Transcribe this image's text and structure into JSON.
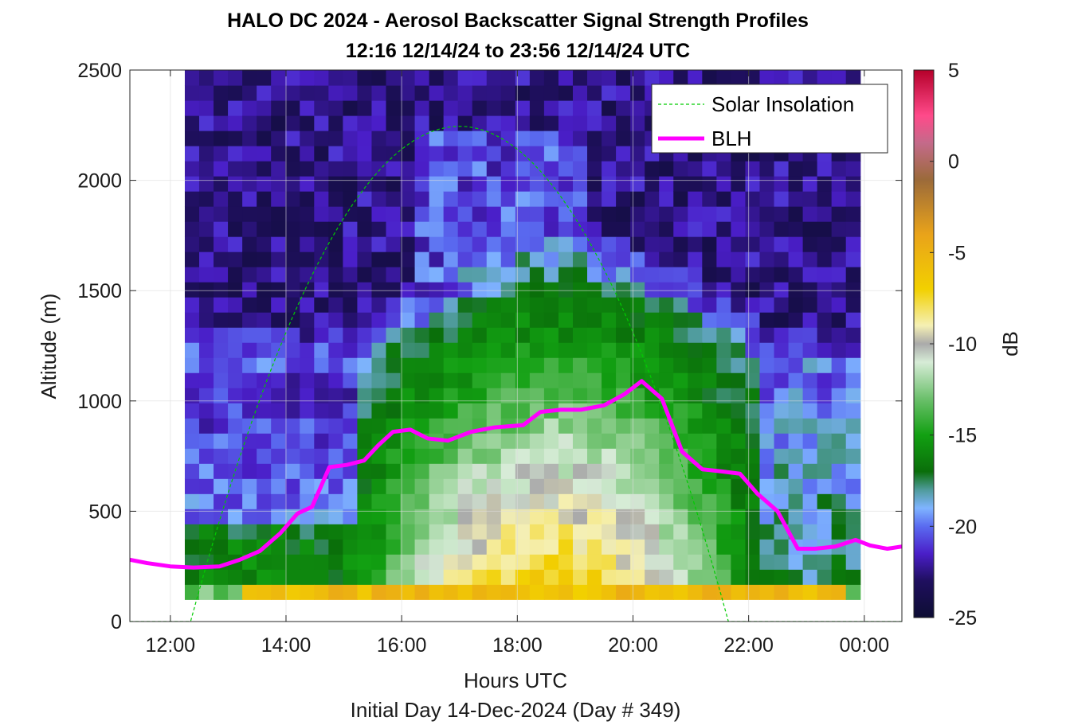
{
  "chart_data": {
    "type": "heatmap",
    "title": "HALO DC 2024 - Aerosol Backscatter Signal Strength Profiles",
    "subtitle": "12:16 12/14/24 to 23:56 12/14/24  UTC",
    "xlabel": "Hours UTC",
    "ylabel": "Altitude (m)",
    "footer": "Initial Day 14-Dec-2024 (Day # 349)",
    "x_range_hours": [
      11.3,
      24.65
    ],
    "x_ticks": [
      12,
      14,
      16,
      18,
      20,
      22,
      24
    ],
    "x_tick_labels": [
      "12:00",
      "14:00",
      "16:00",
      "18:00",
      "20:00",
      "22:00",
      "00:00"
    ],
    "ylim": [
      0,
      2500
    ],
    "y_ticks": [
      0,
      500,
      1000,
      1500,
      2000,
      2500
    ],
    "y_tick_labels": [
      "0",
      "500",
      "1000",
      "1500",
      "2000",
      "2500"
    ],
    "data_x_range_hours": [
      12.25,
      23.93
    ],
    "data_y_range_m": [
      100,
      2500
    ],
    "colorbar": {
      "label": "dB",
      "range": [
        -25,
        5
      ],
      "ticks": [
        5,
        0,
        -5,
        -10,
        -15,
        -20,
        -25
      ],
      "tick_labels": [
        "5",
        "0",
        "-5",
        "-10",
        "-15",
        "-20",
        "-25"
      ],
      "colormap": [
        {
          "value": -25,
          "color": "#0d0d33"
        },
        {
          "value": -23,
          "color": "#1f0f5e"
        },
        {
          "value": -21.5,
          "color": "#4a1ec8"
        },
        {
          "value": -20,
          "color": "#5a6bf0"
        },
        {
          "value": -19,
          "color": "#7fb4ff"
        },
        {
          "value": -18,
          "color": "#4f9b9b"
        },
        {
          "value": -17,
          "color": "#0a6e0a"
        },
        {
          "value": -15,
          "color": "#12a012"
        },
        {
          "value": -13,
          "color": "#6cc06c"
        },
        {
          "value": -11,
          "color": "#d7ecd7"
        },
        {
          "value": -10,
          "color": "#aaaaaa"
        },
        {
          "value": -9,
          "color": "#f5f0b4"
        },
        {
          "value": -7,
          "color": "#f2d000"
        },
        {
          "value": -4,
          "color": "#e9a31a"
        },
        {
          "value": -1,
          "color": "#9b6a3a"
        },
        {
          "value": 1,
          "color": "#c46a8a"
        },
        {
          "value": 2.5,
          "color": "#ff4a8a"
        },
        {
          "value": 5,
          "color": "#b5002a"
        }
      ]
    },
    "legend": {
      "placement": "top-right",
      "entries": [
        "Solar Insolation",
        "BLH"
      ]
    },
    "series": [
      {
        "name": "BLH",
        "color": "#ff00ff",
        "style": "solid",
        "x": [
          11.3,
          11.6,
          12.0,
          12.4,
          12.85,
          13.2,
          13.55,
          13.9,
          14.2,
          14.45,
          14.75,
          15.05,
          15.35,
          15.6,
          15.85,
          16.15,
          16.45,
          16.8,
          17.2,
          17.6,
          18.1,
          18.4,
          18.75,
          19.1,
          19.5,
          19.85,
          20.15,
          20.5,
          20.85,
          21.2,
          21.55,
          21.85,
          22.15,
          22.5,
          22.85,
          23.15,
          23.5,
          23.85,
          24.1,
          24.4,
          24.65
        ],
        "y": [
          280,
          265,
          250,
          245,
          250,
          280,
          320,
          400,
          490,
          520,
          700,
          710,
          730,
          800,
          860,
          870,
          830,
          820,
          860,
          880,
          890,
          950,
          960,
          960,
          980,
          1030,
          1090,
          1010,
          770,
          690,
          680,
          670,
          580,
          500,
          330,
          330,
          340,
          370,
          345,
          330,
          340
        ]
      },
      {
        "name": "Solar Insolation",
        "color": "#00cc00",
        "style": "dashed",
        "x_start": 12.35,
        "x_peak": 17.0,
        "x_end": 21.65,
        "peak_y": 2245,
        "baseline_y": 0
      }
    ]
  }
}
